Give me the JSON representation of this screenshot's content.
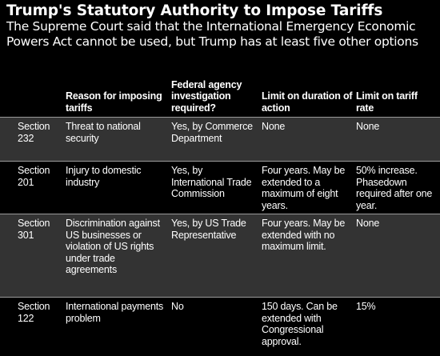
{
  "title": "Trump's Statutory Authority to Impose Tariffs",
  "subtitle": "The Supreme Court said that the International Emergency Economic Powers Act cannot be used, but Trump has at least five other options",
  "table": {
    "headers": [
      "",
      "Reason for imposing tariffs",
      "Federal agency investigation required?",
      "Limit on duration of action",
      "Limit on tariff rate"
    ],
    "rows": [
      [
        "Section 232",
        "Threat to national security",
        "Yes, by Commerce Department",
        "None",
        "None"
      ],
      [
        "Section 201",
        "Injury to domestic industry",
        "Yes, by International Trade Commission",
        "Four years. May be extended to a maximum of eight years.",
        "50% increase. Phasedown required after one year."
      ],
      [
        "Section 301",
        "Discrimination against US businesses or violation of US rights under trade agreements",
        "Yes, by US Trade Representative",
        "Four years. May be extended with no maximum limit.",
        "None"
      ],
      [
        "Section 122",
        "International payments problem",
        "No",
        "150 days. Can be extended with Congressional approval.",
        "15%"
      ]
    ]
  }
}
